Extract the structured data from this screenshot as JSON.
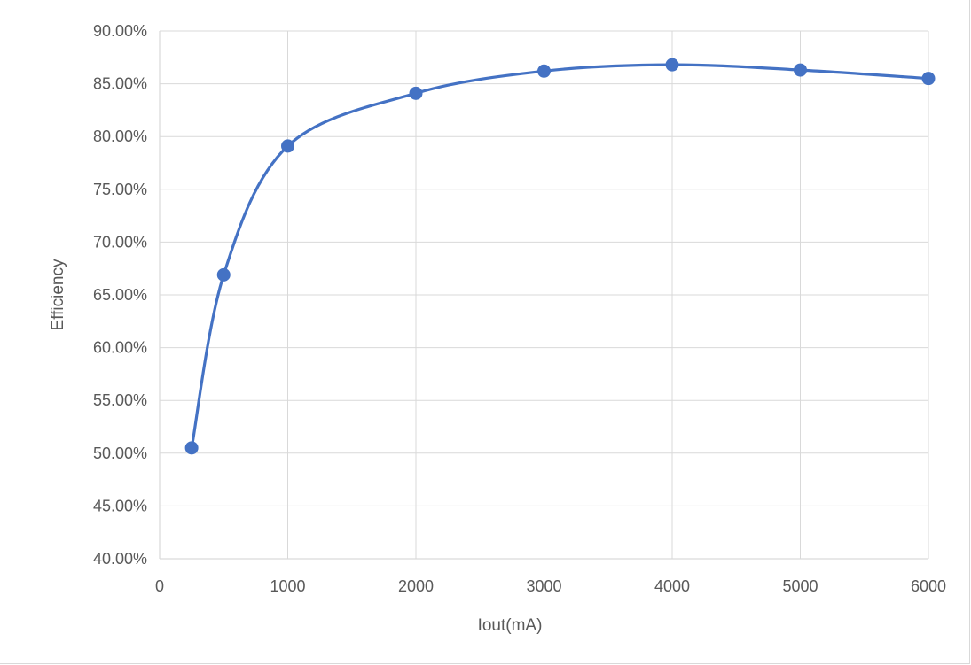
{
  "chart_data": {
    "type": "scatter",
    "title": "",
    "xlabel": "Iout(mA)",
    "ylabel": "Efficiency",
    "xlim": [
      0,
      6000
    ],
    "ylim": [
      0.4,
      0.9
    ],
    "x_ticks": [
      0,
      1000,
      2000,
      3000,
      4000,
      5000,
      6000
    ],
    "x_tick_labels": [
      "0",
      "1000",
      "2000",
      "3000",
      "4000",
      "5000",
      "6000"
    ],
    "y_ticks": [
      0.4,
      0.45,
      0.5,
      0.55,
      0.6,
      0.65,
      0.7,
      0.75,
      0.8,
      0.85,
      0.9
    ],
    "y_tick_labels": [
      "40.00%",
      "45.00%",
      "50.00%",
      "55.00%",
      "60.00%",
      "65.00%",
      "70.00%",
      "75.00%",
      "80.00%",
      "85.00%",
      "90.00%"
    ],
    "grid": true,
    "smooth_line": true,
    "markers": true,
    "legend": "none",
    "series": [
      {
        "color": "#4472c4",
        "x": [
          250,
          500,
          1000,
          2000,
          3000,
          4000,
          5000,
          6000
        ],
        "y": [
          0.505,
          0.669,
          0.791,
          0.841,
          0.862,
          0.868,
          0.863,
          0.855
        ]
      }
    ]
  },
  "colors": {
    "grid": "#d9d9d9",
    "text": "#595959",
    "series": "#4472c4"
  }
}
